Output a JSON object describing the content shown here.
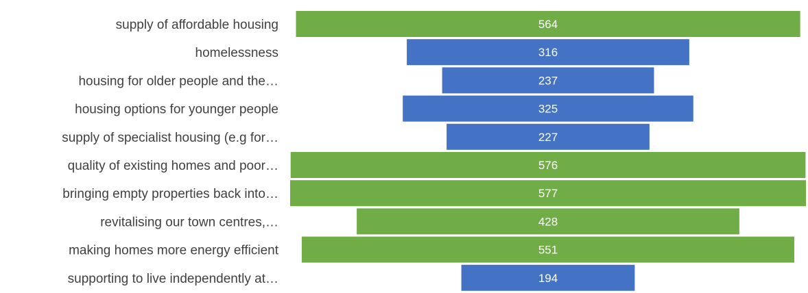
{
  "chart_data": {
    "type": "bar",
    "orientation": "horizontal-centered",
    "categories": [
      "supply of affordable housing",
      "homelessness",
      "housing for older people and the…",
      "housing options for younger people",
      "supply of specialist housing (e.g for…",
      "quality of existing homes and poor…",
      "bringing empty properties back into…",
      "revitalising our town centres,…",
      "making homes more energy efficient",
      "supporting to live independently at…"
    ],
    "values": [
      564,
      316,
      237,
      325,
      227,
      576,
      577,
      428,
      551,
      194
    ],
    "colors": [
      "#70ad47",
      "#4472c4",
      "#4472c4",
      "#4472c4",
      "#4472c4",
      "#70ad47",
      "#70ad47",
      "#70ad47",
      "#70ad47",
      "#4472c4"
    ],
    "xlim": [
      0,
      577
    ],
    "grid": false,
    "title": "",
    "xlabel": "",
    "ylabel": ""
  }
}
